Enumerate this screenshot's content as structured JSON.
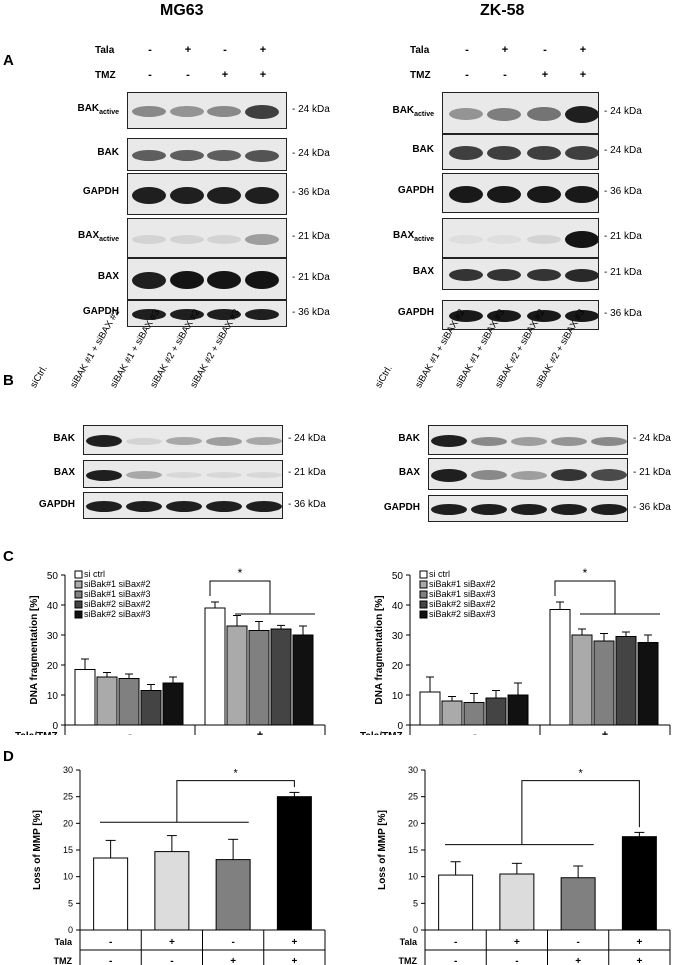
{
  "titles": {
    "left": "MG63",
    "right": "ZK-58"
  },
  "panels": {
    "A": "A",
    "B": "B",
    "C": "C",
    "D": "D"
  },
  "treat": {
    "tala": "Tala",
    "tmz": "TMZ"
  },
  "pm": {
    "tala_signs": [
      "-",
      "+",
      "-",
      "+"
    ],
    "tmz_signs": [
      "-",
      "-",
      "+",
      "+"
    ]
  },
  "blotA": {
    "rows": [
      {
        "label": "BAK",
        "sub": "active",
        "kda": "- 24 kDa"
      },
      {
        "label": "BAK",
        "sub": "",
        "kda": "- 24 kDa"
      },
      {
        "label": "GAPDH",
        "sub": "",
        "kda": "- 36 kDa"
      },
      {
        "label": "BAX",
        "sub": "active",
        "kda": "- 21 kDa"
      },
      {
        "label": "BAX",
        "sub": "",
        "kda": "- 21 kDa"
      },
      {
        "label": "GAPDH",
        "sub": "",
        "kda": "- 36 kDa"
      }
    ]
  },
  "blotB": {
    "left_lanes": [
      "siCtrl.",
      "siBAK #1 + siBAX #2",
      "siBAK #1 + siBAX #3",
      "siBAK #2 + siBAX #2",
      "siBAK #2 + siBAX #3"
    ],
    "right_lanes": [
      "siCtrl.",
      "siBAK #1 + siBAX #2",
      "siBAK #1 + siBAX #3",
      "siBAK #2 + siBAX #2",
      "siBAK #2 + siBAX #3"
    ],
    "rows": [
      {
        "label": "BAK",
        "kda": "- 24 kDa"
      },
      {
        "label": "BAX",
        "kda": "- 21 kDa"
      },
      {
        "label": "GAPDH",
        "kda": "- 36 kDa"
      }
    ]
  },
  "chart_data": [
    {
      "id": "C-MG63",
      "type": "bar",
      "ylabel": "DNA fragmentation [%]",
      "ylim": [
        0,
        50
      ],
      "yticks": [
        0,
        10,
        20,
        30,
        40,
        50
      ],
      "xlabel": "Tala/TMZ",
      "categories": [
        "-",
        "+"
      ],
      "significance": "*",
      "series": [
        {
          "name": "si ctrl",
          "color": "#ffffff",
          "values": [
            18.5,
            39
          ],
          "errors": [
            3.5,
            2
          ]
        },
        {
          "name": "siBak#1 siBax#2",
          "color": "#aaaaaa",
          "values": [
            16,
            33
          ],
          "errors": [
            1.5,
            3.5
          ]
        },
        {
          "name": "siBak#1 siBax#3",
          "color": "#808080",
          "values": [
            15.5,
            31.5
          ],
          "errors": [
            1.5,
            3
          ]
        },
        {
          "name": "siBak#2 siBax#2",
          "color": "#444444",
          "values": [
            11.5,
            32
          ],
          "errors": [
            2,
            1.2
          ]
        },
        {
          "name": "siBak#2 siBax#3",
          "color": "#111111",
          "values": [
            14,
            30
          ],
          "errors": [
            2,
            3
          ]
        }
      ]
    },
    {
      "id": "C-ZK58",
      "type": "bar",
      "ylabel": "DNA fragmentation [%]",
      "ylim": [
        0,
        50
      ],
      "yticks": [
        0,
        10,
        20,
        30,
        40,
        50
      ],
      "xlabel": "Tala/TMZ",
      "categories": [
        "-",
        "+"
      ],
      "significance": "*",
      "series": [
        {
          "name": "si ctrl",
          "color": "#ffffff",
          "values": [
            11,
            38.5
          ],
          "errors": [
            5,
            2.5
          ]
        },
        {
          "name": "siBak#1 siBax#2",
          "color": "#aaaaaa",
          "values": [
            8,
            30
          ],
          "errors": [
            1.5,
            2
          ]
        },
        {
          "name": "siBak#1 siBax#3",
          "color": "#808080",
          "values": [
            7.5,
            28
          ],
          "errors": [
            3,
            2.5
          ]
        },
        {
          "name": "siBak#2 siBax#2",
          "color": "#444444",
          "values": [
            9,
            29.5
          ],
          "errors": [
            2.5,
            1.5
          ]
        },
        {
          "name": "siBak#2 siBax#3",
          "color": "#111111",
          "values": [
            10,
            27.5
          ],
          "errors": [
            4,
            2.5
          ]
        }
      ]
    },
    {
      "id": "D-MG63",
      "type": "bar",
      "ylabel": "Loss of MMP [%]",
      "ylim": [
        0,
        30
      ],
      "yticks": [
        0,
        5,
        10,
        15,
        20,
        25,
        30
      ],
      "row_labels": [
        "Tala",
        "TMZ"
      ],
      "tala": [
        "-",
        "+",
        "-",
        "+"
      ],
      "tmz": [
        "-",
        "-",
        "+",
        "+"
      ],
      "significance": "*",
      "colors": [
        "#ffffff",
        "#dcdcdc",
        "#808080",
        "#000000"
      ],
      "values": [
        13.5,
        14.7,
        13.2,
        25
      ],
      "errors": [
        3.3,
        3,
        3.8,
        0.8
      ]
    },
    {
      "id": "D-ZK58",
      "type": "bar",
      "ylabel": "Loss of MMP [%]",
      "ylim": [
        0,
        30
      ],
      "yticks": [
        0,
        5,
        10,
        15,
        20,
        25,
        30
      ],
      "row_labels": [
        "Tala",
        "TMZ"
      ],
      "tala": [
        "-",
        "+",
        "-",
        "+"
      ],
      "tmz": [
        "-",
        "-",
        "+",
        "+"
      ],
      "significance": "*",
      "colors": [
        "#ffffff",
        "#dcdcdc",
        "#808080",
        "#000000"
      ],
      "values": [
        10.3,
        10.5,
        9.8,
        17.5
      ],
      "errors": [
        2.5,
        2,
        2.2,
        0.8
      ]
    }
  ]
}
